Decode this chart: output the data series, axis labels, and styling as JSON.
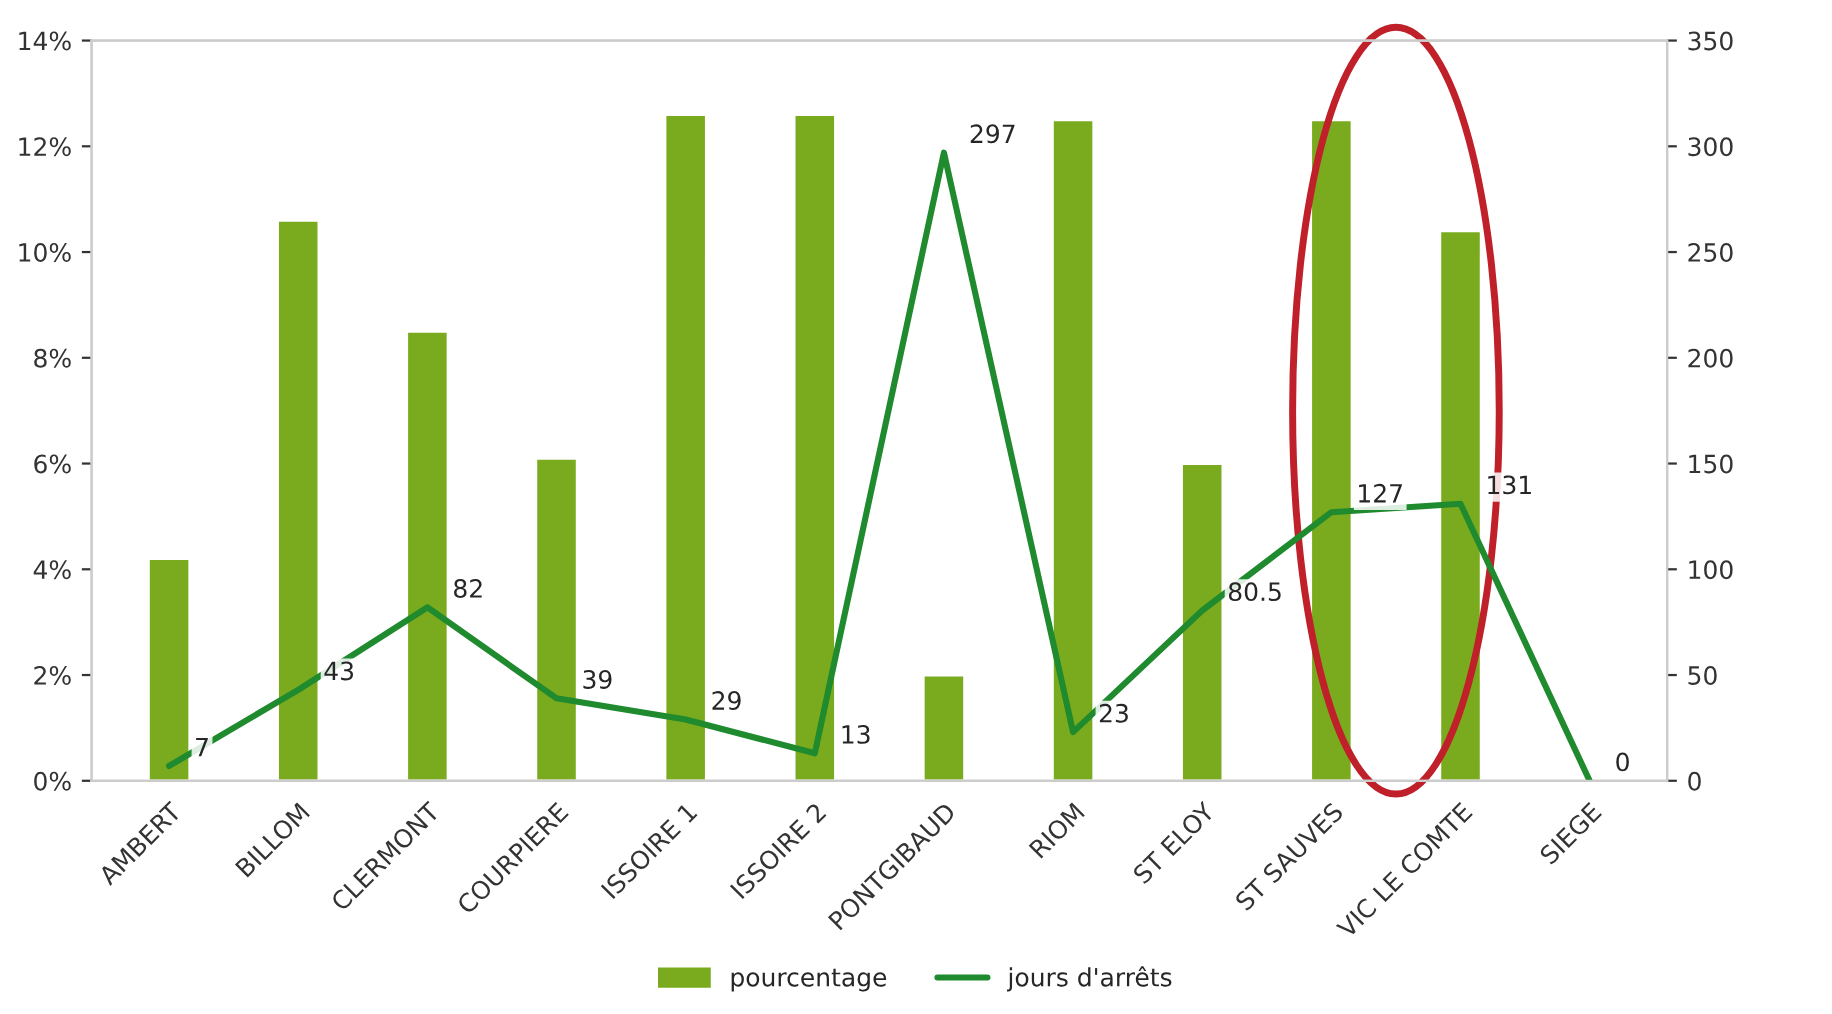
{
  "chart_data": {
    "type": "bar",
    "categories": [
      "AMBERT",
      "BILLOM",
      "CLERMONT",
      "COURPIERE",
      "ISSOIRE 1",
      "ISSOIRE 2",
      "PONTGIBAUD",
      "RIOM",
      "ST ELOY",
      "ST SAUVES",
      "VIC LE COMTE",
      "SIEGE"
    ],
    "series": [
      {
        "name": "pourcentage",
        "color": "#7aab1e",
        "values": [
          4.2,
          10.6,
          8.5,
          6.1,
          12.6,
          12.6,
          2.0,
          12.5,
          6.0,
          12.5,
          10.4,
          null
        ]
      },
      {
        "name": "jours d'arrêts",
        "type": "line",
        "axis": "y2",
        "color": "#1f8a2e",
        "values": [
          7,
          43,
          82,
          39,
          29,
          13,
          297,
          23,
          80.5,
          127,
          131,
          0
        ],
        "data_labels": true
      }
    ],
    "ylim": [
      0,
      14
    ],
    "yticks": [
      {
        "value": 0,
        "label": "0%"
      },
      {
        "value": 2,
        "label": "2%"
      },
      {
        "value": 4,
        "label": "4%"
      },
      {
        "value": 6,
        "label": "6%"
      },
      {
        "value": 8,
        "label": "8%"
      },
      {
        "value": 10,
        "label": "10%"
      },
      {
        "value": 12,
        "label": "12%"
      },
      {
        "value": 14,
        "label": "14%"
      }
    ],
    "y2lim": [
      0,
      350
    ],
    "y2ticks": [
      0,
      50,
      100,
      150,
      200,
      250,
      300,
      350
    ],
    "grid": false,
    "legend": "bottom"
  }
}
